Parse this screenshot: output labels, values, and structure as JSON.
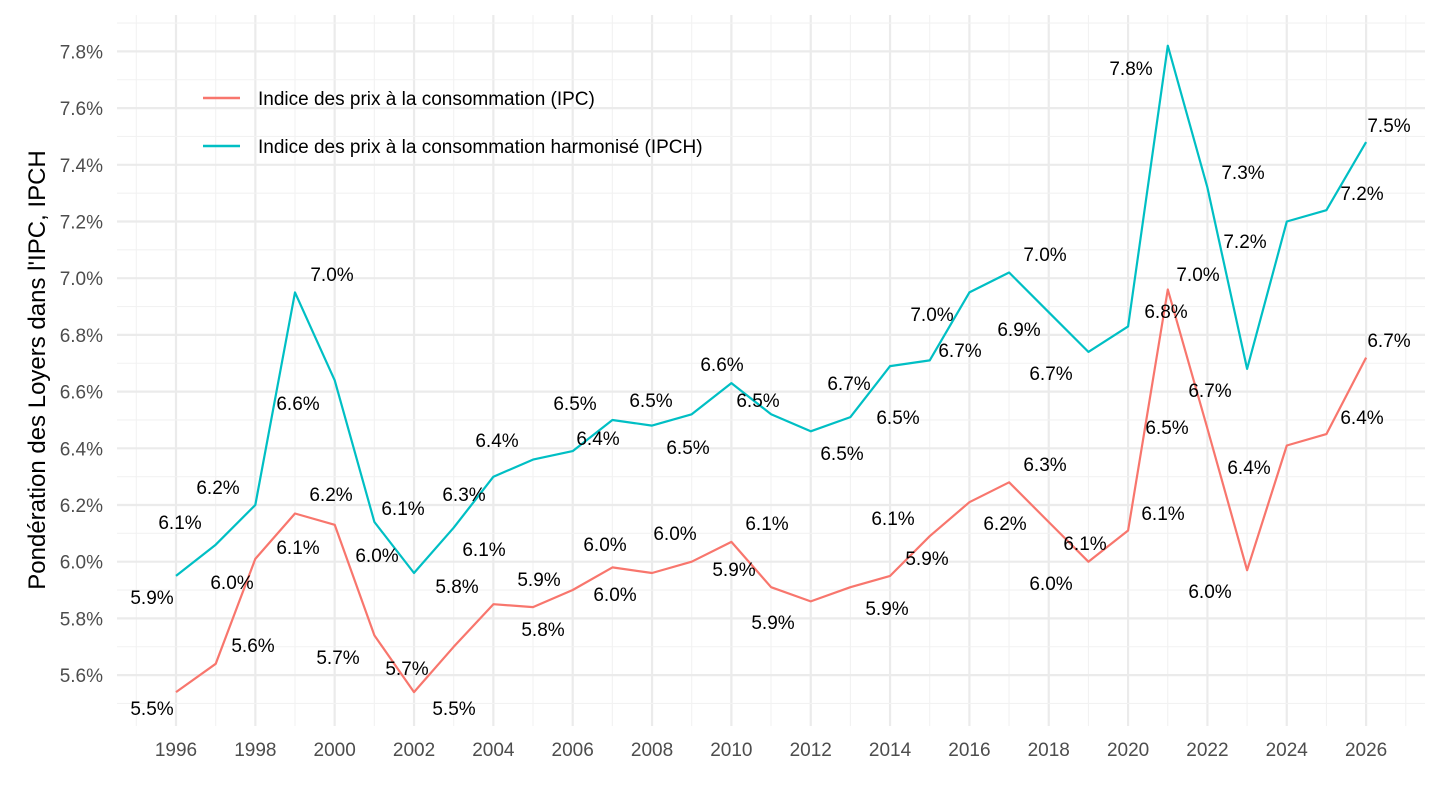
{
  "chart_data": {
    "type": "line",
    "title": "",
    "xlabel": "",
    "ylabel": "Pondération des Loyers dans l'IPC, IPCH",
    "x": [
      1996,
      1997,
      1998,
      1999,
      2000,
      2001,
      2002,
      2003,
      2004,
      2005,
      2006,
      2007,
      2008,
      2009,
      2010,
      2011,
      2012,
      2013,
      2014,
      2015,
      2016,
      2017,
      2018,
      2019,
      2020,
      2021,
      2022,
      2023,
      2024,
      2025,
      2026
    ],
    "xlim": [
      1994.97,
      2027.45
    ],
    "ylim": [
      5.46,
      7.95
    ],
    "x_ticks": [
      "1996",
      "1998",
      "2000",
      "2002",
      "2004",
      "2006",
      "2008",
      "2010",
      "2012",
      "2014",
      "2016",
      "2018",
      "2020",
      "2022",
      "2024",
      "2026"
    ],
    "y_ticks": [
      "5.6%",
      "5.8%",
      "6.0%",
      "6.2%",
      "6.4%",
      "6.6%",
      "6.8%",
      "7.0%",
      "7.2%",
      "7.4%",
      "7.6%",
      "7.8%"
    ],
    "grid": true,
    "legend_position": "top-left",
    "series": [
      {
        "name": "Indice des prix à la consommation (IPC)",
        "color": "#F8766D",
        "values": [
          5.54,
          5.64,
          6.01,
          6.17,
          6.13,
          5.74,
          5.54,
          5.7,
          5.85,
          5.84,
          5.9,
          5.98,
          5.96,
          6.0,
          6.07,
          5.91,
          5.86,
          5.91,
          5.95,
          6.09,
          6.21,
          6.28,
          6.14,
          6.0,
          6.11,
          6.96,
          6.47,
          5.97,
          6.41,
          6.45,
          6.72
        ],
        "labels": [
          "5.5%",
          "5.6%",
          "6.0%",
          "6.2%",
          "6.1%",
          "5.7%",
          "5.5%",
          "5.7%",
          "5.8%",
          "5.8%",
          "5.9%",
          "6.0%",
          "6.0%",
          "6.0%",
          "6.1%",
          "5.9%",
          "5.9%",
          "5.9%",
          "5.9%",
          "6.1%",
          "6.2%",
          "6.3%",
          "6.1%",
          "6.0%",
          "6.1%",
          "7.0%",
          "6.5%",
          "6.0%",
          "6.4%",
          "6.4%",
          "6.7%"
        ]
      },
      {
        "name": "Indice des prix à la consommation harmonisé (IPCH)",
        "color": "#00BFC4",
        "values": [
          5.95,
          6.06,
          6.2,
          6.95,
          6.64,
          6.14,
          5.96,
          6.12,
          6.3,
          6.36,
          6.39,
          6.5,
          6.48,
          6.52,
          6.63,
          6.52,
          6.46,
          6.51,
          6.69,
          6.71,
          6.95,
          7.02,
          6.88,
          6.74,
          6.83,
          7.82,
          7.32,
          6.68,
          7.2,
          7.24,
          7.48
        ],
        "labels": [
          "5.9%",
          "6.1%",
          "6.2%",
          "7.0%",
          "6.6%",
          "6.1%",
          "6.0%",
          "6.1%",
          "6.3%",
          "6.4%",
          "6.4%",
          "6.5%",
          "6.5%",
          "6.5%",
          "6.6%",
          "6.5%",
          "6.5%",
          "6.5%",
          "6.7%",
          "6.7%",
          "7.0%",
          "7.0%",
          "6.9%",
          "6.7%",
          "6.8%",
          "7.8%",
          "7.3%",
          "6.7%",
          "7.2%",
          "7.2%",
          "7.5%"
        ]
      }
    ]
  }
}
